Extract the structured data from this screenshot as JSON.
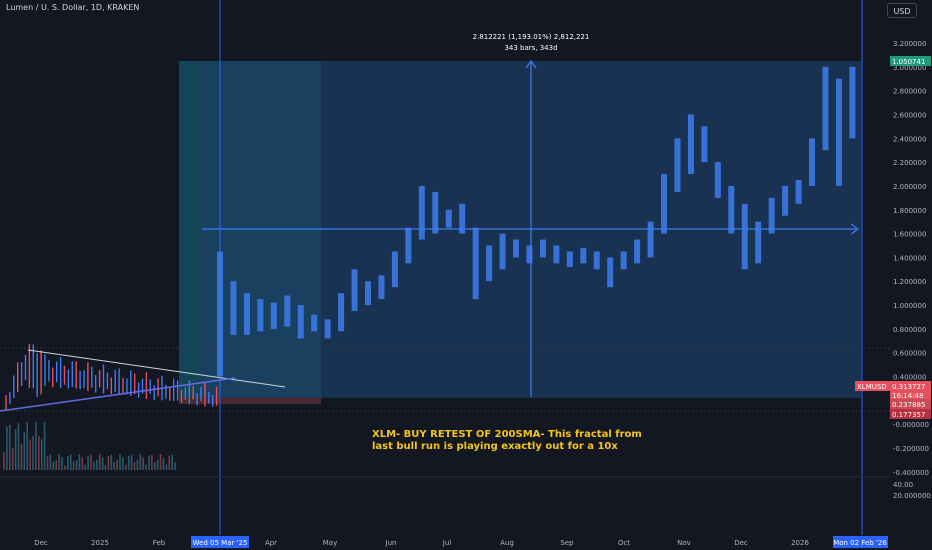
{
  "header": {
    "symbol": "Lumen / U. S. Dollar, 1D, KRAKEN",
    "currency": "USD"
  },
  "colors": {
    "bg": "#131722",
    "up": "#3e7cf0",
    "down": "#e4505c",
    "long_box": "#16546a",
    "long_box_2": "#1a6b6e",
    "range_box": "#1b3a5e",
    "stop": "#4a2a2f",
    "axis_text": "#b2b5be"
  },
  "chart_data": {
    "type": "bar",
    "title": "XLM- BUY RETEST OF 200SMA- This fractal from last bull run is playing exactly out for a 10x",
    "x_tick_labels": [
      "Dec",
      "2025",
      "Feb",
      "Apr",
      "May",
      "Jun",
      "Jul",
      "Aug",
      "Sep",
      "Oct",
      "Nov",
      "Dec",
      "2026"
    ],
    "x_marker_labels": [
      "Wed 05 Mar '25",
      "Mon 02 Feb '26"
    ],
    "y_tick_labels": [
      "3.200000",
      "3.000000",
      "2.800000",
      "2.600000",
      "2.400000",
      "2.200000",
      "2.000000",
      "1.800000",
      "1.600000",
      "1.400000",
      "1.200000",
      "1.000000",
      "0.800000",
      "0.600000",
      "0.400000",
      "0.200000",
      "-0.000000",
      "-0.200000",
      "-0.400000"
    ],
    "ylim": [
      -0.45,
      3.3
    ],
    "volume_pane_labels": [
      "40.00",
      "20.000000"
    ],
    "price_labels": {
      "top": "1.050741",
      "symbol": "XLMUSD",
      "last": "0.313727",
      "countdown": "16:14:48",
      "level_1": "0.237885",
      "level_2": "0.177357"
    },
    "measure": {
      "line1": "2.812221 (1,193.01%) 2,812,221",
      "line2": "343 bars, 343d"
    },
    "annotation": {
      "line1": "XLM- BUY RETEST OF 200SMA- This fractal from",
      "line2": "last bull run is playing exactly out for a 10x"
    },
    "weekly_bars": [
      {
        "date": "2025-03-05",
        "high": 1.45,
        "low": 0.4
      },
      {
        "date": "2025-03-12",
        "high": 1.2,
        "low": 0.75
      },
      {
        "date": "2025-03-19",
        "high": 1.1,
        "low": 0.75
      },
      {
        "date": "2025-03-26",
        "high": 1.05,
        "low": 0.78
      },
      {
        "date": "2025-04-02",
        "high": 1.02,
        "low": 0.8
      },
      {
        "date": "2025-04-09",
        "high": 1.08,
        "low": 0.82
      },
      {
        "date": "2025-04-16",
        "high": 1.0,
        "low": 0.72
      },
      {
        "date": "2025-04-23",
        "high": 0.92,
        "low": 0.78
      },
      {
        "date": "2025-04-30",
        "high": 0.88,
        "low": 0.72
      },
      {
        "date": "2025-05-07",
        "high": 1.1,
        "low": 0.78
      },
      {
        "date": "2025-05-14",
        "high": 1.3,
        "low": 0.95
      },
      {
        "date": "2025-05-21",
        "high": 1.2,
        "low": 1.0
      },
      {
        "date": "2025-05-28",
        "high": 1.25,
        "low": 1.05
      },
      {
        "date": "2025-06-04",
        "high": 1.45,
        "low": 1.15
      },
      {
        "date": "2025-06-11",
        "high": 1.65,
        "low": 1.35
      },
      {
        "date": "2025-06-18",
        "high": 2.0,
        "low": 1.55
      },
      {
        "date": "2025-06-25",
        "high": 1.95,
        "low": 1.6
      },
      {
        "date": "2025-07-02",
        "high": 1.8,
        "low": 1.65
      },
      {
        "date": "2025-07-09",
        "high": 1.85,
        "low": 1.6
      },
      {
        "date": "2025-07-16",
        "high": 1.65,
        "low": 1.05
      },
      {
        "date": "2025-07-23",
        "high": 1.5,
        "low": 1.2
      },
      {
        "date": "2025-07-30",
        "high": 1.6,
        "low": 1.3
      },
      {
        "date": "2025-08-06",
        "high": 1.55,
        "low": 1.4
      },
      {
        "date": "2025-08-13",
        "high": 1.5,
        "low": 1.35
      },
      {
        "date": "2025-08-20",
        "high": 1.55,
        "low": 1.4
      },
      {
        "date": "2025-08-27",
        "high": 1.5,
        "low": 1.35
      },
      {
        "date": "2025-09-03",
        "high": 1.45,
        "low": 1.32
      },
      {
        "date": "2025-09-10",
        "high": 1.48,
        "low": 1.35
      },
      {
        "date": "2025-09-17",
        "high": 1.45,
        "low": 1.3
      },
      {
        "date": "2025-09-24",
        "high": 1.4,
        "low": 1.15
      },
      {
        "date": "2025-10-01",
        "high": 1.45,
        "low": 1.3
      },
      {
        "date": "2025-10-08",
        "high": 1.55,
        "low": 1.35
      },
      {
        "date": "2025-10-15",
        "high": 1.7,
        "low": 1.4
      },
      {
        "date": "2025-10-22",
        "high": 2.1,
        "low": 1.6
      },
      {
        "date": "2025-10-29",
        "high": 2.4,
        "low": 1.95
      },
      {
        "date": "2025-11-05",
        "high": 2.6,
        "low": 2.1
      },
      {
        "date": "2025-11-12",
        "high": 2.5,
        "low": 2.2
      },
      {
        "date": "2025-11-19",
        "high": 2.2,
        "low": 1.9
      },
      {
        "date": "2025-11-26",
        "high": 2.0,
        "low": 1.6
      },
      {
        "date": "2025-12-03",
        "high": 1.85,
        "low": 1.3
      },
      {
        "date": "2025-12-10",
        "high": 1.7,
        "low": 1.35
      },
      {
        "date": "2025-12-17",
        "high": 1.9,
        "low": 1.6
      },
      {
        "date": "2025-12-24",
        "high": 2.0,
        "low": 1.75
      },
      {
        "date": "2025-12-31",
        "high": 2.05,
        "low": 1.85
      },
      {
        "date": "2026-01-07",
        "high": 2.4,
        "low": 2.0
      },
      {
        "date": "2026-01-14",
        "high": 3.0,
        "low": 2.3
      },
      {
        "date": "2026-01-21",
        "high": 2.9,
        "low": 2.0
      },
      {
        "date": "2026-01-28",
        "high": 3.0,
        "low": 2.4
      }
    ]
  }
}
